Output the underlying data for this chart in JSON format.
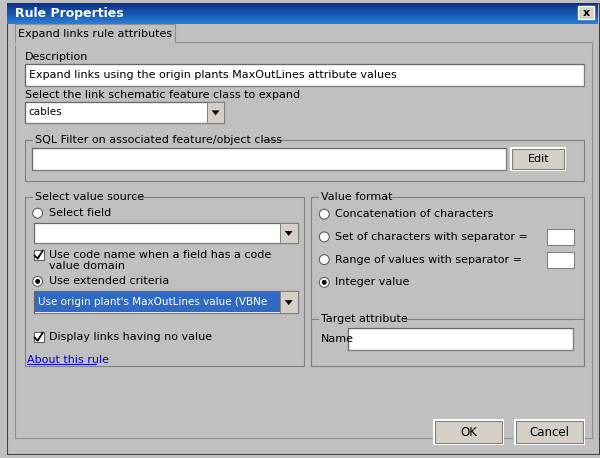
{
  "title": "Rule Properties",
  "tab_label": "Expand links rule attributes",
  "description_label": "Description",
  "description_text": "Expand links using the origin plants MaxOutLines attribute values",
  "select_link_label": "Select the link schematic feature class to expand",
  "dropdown_cables": "cables",
  "sql_filter_label": "SQL Filter on associated feature/object class",
  "edit_button": "Edit",
  "select_value_source_label": "Select value source",
  "radio_select_field": "Select field",
  "checkbox_use_code_line1": "Use code name when a field has a code",
  "checkbox_use_code_line2": "value domain",
  "radio_use_extended": "Use extended criteria",
  "dropdown_extended": "Use origin plant's MaxOutLines value (VBNe",
  "checkbox_display_links": "Display links having no value",
  "about_link": "About this rule",
  "value_format_label": "Value format",
  "radio_concat": "Concatenation of characters",
  "radio_set_chars": "Set of characters with separator =",
  "radio_range": "Range of values with separator =",
  "radio_integer": "Integer value",
  "target_attr_label": "Target attribute",
  "name_label": "Name",
  "ok_button": "OK",
  "cancel_button": "Cancel",
  "bg_color": "#c0c0c0",
  "white": "#ffffff",
  "text_color": "#000000",
  "link_color": "#0000ee",
  "highlight_blue": "#316ac5",
  "dark_shadow": "#404040",
  "light_highlight": "#ffffff",
  "btn_face": "#d4d0c8"
}
